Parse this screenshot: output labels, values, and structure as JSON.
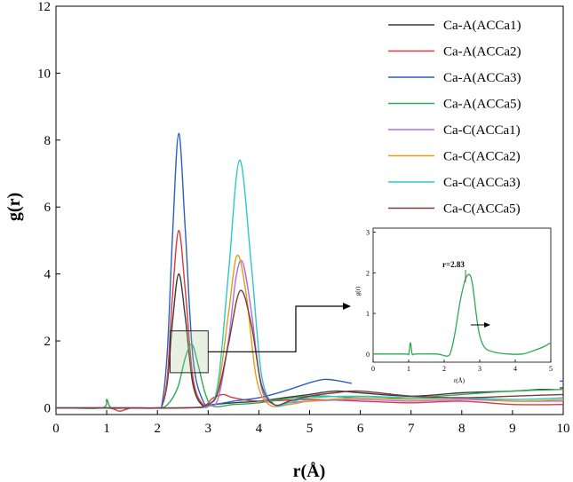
{
  "chart_data": [
    {
      "type": "line",
      "xlabel": "r(Å)",
      "ylabel": "g(r)",
      "xlim": [
        0,
        10
      ],
      "ylim": [
        -0.2,
        12
      ],
      "xticks": [
        0,
        1,
        2,
        3,
        4,
        5,
        6,
        7,
        8,
        9,
        10
      ],
      "yticks": [
        0,
        2,
        4,
        6,
        8,
        10,
        12
      ],
      "grid": false,
      "legend_position": "top-right",
      "series": [
        {
          "name": "Ca-A(ACCa1)",
          "color": "#3a3a3a",
          "peaks": [
            {
              "x": 2.42,
              "y": 4.0,
              "w": 0.11
            }
          ],
          "x": [
            0,
            1,
            1.5,
            2.0,
            2.1,
            2.2,
            2.3,
            2.42,
            2.55,
            2.7,
            2.9,
            3.1,
            3.5,
            4.0,
            4.5,
            5.0,
            5.5,
            6.0,
            7.0,
            8.0,
            9.0,
            10.0
          ],
          "y": [
            0,
            0,
            0,
            0,
            0.1,
            0.8,
            2.6,
            4.0,
            2.7,
            0.7,
            0.05,
            0.1,
            0.15,
            0.2,
            0.3,
            0.4,
            0.5,
            0.45,
            0.35,
            0.45,
            0.5,
            0.6
          ]
        },
        {
          "name": "Ca-A(ACCa2)",
          "color": "#d93b3b",
          "x": [
            0,
            1,
            1.25,
            1.5,
            2.0,
            2.1,
            2.2,
            2.3,
            2.42,
            2.55,
            2.7,
            2.9,
            3.1,
            3.3,
            3.5,
            4.0,
            5.0,
            6.0,
            7.0,
            8.0,
            9.0,
            10.0
          ],
          "y": [
            0,
            0,
            -0.1,
            0,
            0,
            0.1,
            1.0,
            3.4,
            5.3,
            3.5,
            0.9,
            0.1,
            0.3,
            0.4,
            0.3,
            0.2,
            0.25,
            0.2,
            0.15,
            0.2,
            0.1,
            0.1
          ]
        },
        {
          "name": "Ca-A(ACCa3)",
          "color": "#2a5fc7",
          "x": [
            0,
            1,
            1.5,
            2.0,
            2.1,
            2.2,
            2.3,
            2.42,
            2.55,
            2.7,
            2.9,
            3.1,
            3.5,
            4.0,
            4.5,
            5.0,
            5.3,
            5.6,
            6.0,
            7.0,
            8.0,
            9.0,
            10.0
          ],
          "y": [
            0,
            0,
            0,
            0,
            0.2,
            1.8,
            5.2,
            8.2,
            5.3,
            1.5,
            0.2,
            0.1,
            0.2,
            0.3,
            0.5,
            0.75,
            0.85,
            0.8,
            0.7,
            0.65,
            0.7,
            0.75,
            0.8
          ]
        },
        {
          "name": "Ca-A(ACCa5)",
          "color": "#2eaa55",
          "x": [
            0,
            0.9,
            1.0,
            1.1,
            1.5,
            2.0,
            2.2,
            2.4,
            2.55,
            2.68,
            2.8,
            2.95,
            3.1,
            3.5,
            4.0,
            5.0,
            6.0,
            7.0,
            8.0,
            9.0,
            10.0
          ],
          "y": [
            0,
            0,
            0.25,
            0,
            0,
            0,
            0.1,
            0.6,
            1.5,
            1.9,
            1.3,
            0.4,
            0.05,
            0.1,
            0.15,
            0.35,
            0.3,
            0.3,
            0.4,
            0.5,
            0.55
          ]
        },
        {
          "name": "Ca-C(ACCa1)",
          "color": "#b36ae2",
          "x": [
            0,
            2.5,
            3.0,
            3.2,
            3.4,
            3.55,
            3.68,
            3.85,
            4.05,
            4.3,
            4.6,
            5.0,
            6.0,
            7.0,
            8.0,
            9.0,
            10.0
          ],
          "y": [
            0,
            0,
            0.05,
            0.3,
            2.0,
            3.9,
            4.35,
            2.9,
            0.6,
            0.1,
            0.15,
            0.2,
            0.25,
            0.2,
            0.25,
            0.2,
            0.2
          ]
        },
        {
          "name": "Ca-C(ACCa2)",
          "color": "#d9a116",
          "x": [
            0,
            2.5,
            3.0,
            3.2,
            3.4,
            3.57,
            3.75,
            3.95,
            4.2,
            4.6,
            5.0,
            6.0,
            7.0,
            8.0,
            9.0,
            10.0
          ],
          "y": [
            0,
            0,
            0.1,
            0.6,
            2.8,
            4.55,
            3.4,
            0.9,
            0.1,
            0.1,
            0.2,
            0.3,
            0.25,
            0.3,
            0.2,
            0.25
          ]
        },
        {
          "name": "Ca-C(ACCa3)",
          "color": "#2cc8c8",
          "x": [
            0,
            2.5,
            3.0,
            3.2,
            3.4,
            3.62,
            3.85,
            4.05,
            4.3,
            4.6,
            5.0,
            6.0,
            7.0,
            8.0,
            9.0,
            10.0
          ],
          "y": [
            0,
            0,
            0.1,
            0.8,
            4.0,
            7.4,
            4.3,
            1.0,
            0.1,
            0.15,
            0.3,
            0.35,
            0.3,
            0.3,
            0.25,
            0.3
          ]
        },
        {
          "name": "Ca-C(ACCa5)",
          "color": "#7a3b3b",
          "x": [
            0,
            2.5,
            3.0,
            3.2,
            3.4,
            3.63,
            3.85,
            4.05,
            4.3,
            4.6,
            5.0,
            5.5,
            6.0,
            7.0,
            8.0,
            9.0,
            10.0
          ],
          "y": [
            0,
            0,
            0.1,
            0.5,
            1.9,
            3.5,
            2.5,
            0.7,
            0.1,
            0.2,
            0.35,
            0.45,
            0.5,
            0.35,
            0.3,
            0.35,
            0.4
          ]
        }
      ]
    },
    {
      "type": "line",
      "xlabel": "r(Å)",
      "ylabel": "g(r)",
      "xlim": [
        0,
        5
      ],
      "ylim": [
        -0.2,
        3.1
      ],
      "xticks": [
        0,
        1,
        2,
        3,
        4,
        5
      ],
      "yticks": [
        0,
        1,
        2,
        3
      ],
      "annotation": "r=2.83",
      "series": [
        {
          "name": "Ca-A(ACCa5)",
          "color": "#2eaa55",
          "x": [
            0,
            0.9,
            1.0,
            1.05,
            1.1,
            1.2,
            1.8,
            2.1,
            2.2,
            2.3,
            2.45,
            2.6,
            2.72,
            2.8,
            2.9,
            3.0,
            3.15,
            3.4,
            3.8,
            4.2,
            4.5,
            4.8,
            5.0
          ],
          "y": [
            0,
            0,
            0,
            0.28,
            0,
            0,
            0,
            -0.05,
            0.1,
            0.5,
            1.3,
            1.85,
            1.95,
            1.7,
            1.0,
            0.45,
            0.15,
            0.05,
            0.0,
            0.0,
            0.08,
            0.18,
            0.28
          ]
        }
      ]
    }
  ],
  "inset_marker": {
    "x_range": [
      2.25,
      3.0
    ],
    "y_range": [
      1.05,
      2.3
    ]
  }
}
